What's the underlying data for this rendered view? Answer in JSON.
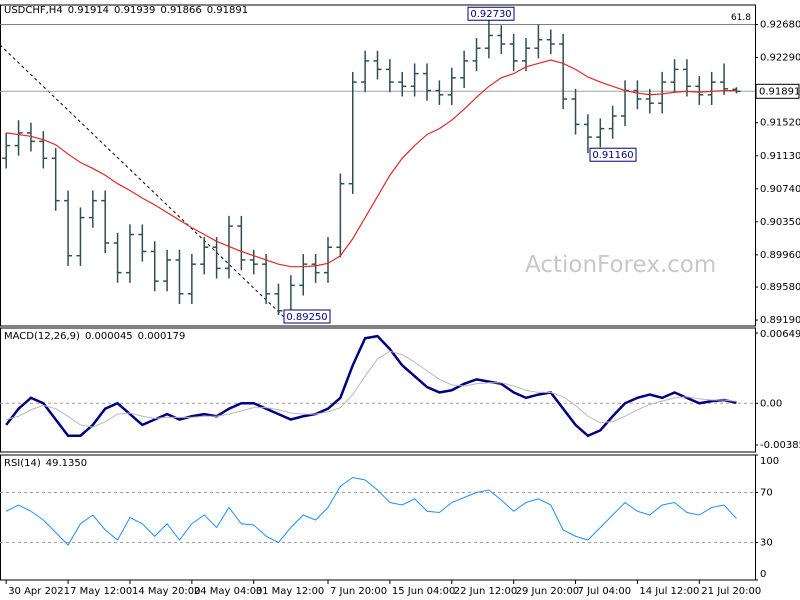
{
  "chart_data": [
    {
      "type": "ohlc",
      "title": "USDCHF,H4",
      "color": "#2f4f4f",
      "open": [
        0.911,
        0.9125,
        0.914,
        0.913,
        0.911,
        0.906,
        0.8995,
        0.904,
        0.906,
        0.901,
        0.8975,
        0.902,
        0.9,
        0.8965,
        0.899,
        0.895,
        0.8985,
        0.9005,
        0.898,
        0.903,
        0.899,
        0.8985,
        0.895,
        0.893,
        0.896,
        0.8985,
        0.8975,
        0.9005,
        0.908,
        0.92,
        0.9225,
        0.9215,
        0.92,
        0.9195,
        0.921,
        0.919,
        0.9185,
        0.9205,
        0.9225,
        0.924,
        0.9255,
        0.9245,
        0.9225,
        0.924,
        0.925,
        0.9245,
        0.918,
        0.915,
        0.9135,
        0.9145,
        0.916,
        0.919,
        0.918,
        0.9175,
        0.92,
        0.9215,
        0.9195,
        0.9185,
        0.92,
        0.91914
      ],
      "high": [
        0.914,
        0.9155,
        0.9152,
        0.9142,
        0.9122,
        0.9072,
        0.9052,
        0.9072,
        0.9072,
        0.9022,
        0.9032,
        0.9032,
        0.9012,
        0.9002,
        0.9002,
        0.8997,
        0.9017,
        0.9017,
        0.9042,
        0.9042,
        0.9002,
        0.8997,
        0.8962,
        0.8972,
        0.8997,
        0.8997,
        0.9017,
        0.9092,
        0.9212,
        0.9237,
        0.9237,
        0.9227,
        0.9212,
        0.9222,
        0.9222,
        0.9202,
        0.9217,
        0.9237,
        0.9252,
        0.9273,
        0.9267,
        0.9257,
        0.9252,
        0.9268,
        0.9262,
        0.9257,
        0.9192,
        0.9162,
        0.9157,
        0.9172,
        0.9202,
        0.9202,
        0.9192,
        0.9212,
        0.9227,
        0.9227,
        0.9207,
        0.9212,
        0.9222,
        0.91939
      ],
      "low": [
        0.9098,
        0.9113,
        0.9118,
        0.9098,
        0.9048,
        0.8983,
        0.8983,
        0.9028,
        0.8998,
        0.8963,
        0.8963,
        0.8988,
        0.8953,
        0.8953,
        0.8938,
        0.8938,
        0.8973,
        0.8968,
        0.8968,
        0.8978,
        0.8973,
        0.8938,
        0.8925,
        0.8926,
        0.8948,
        0.8963,
        0.8963,
        0.8993,
        0.9068,
        0.9188,
        0.9203,
        0.9188,
        0.9183,
        0.9183,
        0.9178,
        0.9173,
        0.9173,
        0.9193,
        0.9213,
        0.9228,
        0.9233,
        0.9213,
        0.9213,
        0.9228,
        0.9233,
        0.9168,
        0.9138,
        0.9116,
        0.9123,
        0.9133,
        0.9148,
        0.9168,
        0.9163,
        0.9163,
        0.9188,
        0.9183,
        0.9173,
        0.9173,
        0.9185,
        0.91866
      ],
      "close": [
        0.9125,
        0.914,
        0.913,
        0.911,
        0.906,
        0.8995,
        0.904,
        0.906,
        0.901,
        0.8975,
        0.902,
        0.9,
        0.8965,
        0.899,
        0.895,
        0.8985,
        0.9005,
        0.898,
        0.903,
        0.899,
        0.8985,
        0.895,
        0.893,
        0.896,
        0.8985,
        0.8975,
        0.9005,
        0.908,
        0.92,
        0.9225,
        0.9215,
        0.92,
        0.9195,
        0.921,
        0.919,
        0.9185,
        0.9205,
        0.9225,
        0.924,
        0.9255,
        0.9245,
        0.9225,
        0.924,
        0.925,
        0.9245,
        0.918,
        0.915,
        0.9135,
        0.9145,
        0.916,
        0.919,
        0.918,
        0.9175,
        0.92,
        0.9215,
        0.9195,
        0.9185,
        0.92,
        0.9192,
        0.91891
      ],
      "ma": {
        "color": "#e02828",
        "values": [
          0.914,
          0.9138,
          0.9136,
          0.9132,
          0.9126,
          0.9115,
          0.9105,
          0.9098,
          0.909,
          0.908,
          0.9072,
          0.9063,
          0.9055,
          0.9046,
          0.9037,
          0.9028,
          0.902,
          0.9012,
          0.9006,
          0.9,
          0.8995,
          0.899,
          0.8985,
          0.8982,
          0.8982,
          0.8983,
          0.8986,
          0.8995,
          0.9015,
          0.904,
          0.9065,
          0.909,
          0.911,
          0.9125,
          0.9138,
          0.9145,
          0.9155,
          0.9168,
          0.9182,
          0.9195,
          0.9205,
          0.921,
          0.9218,
          0.9222,
          0.9226,
          0.9222,
          0.9215,
          0.9206,
          0.92,
          0.9195,
          0.919,
          0.9187,
          0.9185,
          0.9186,
          0.9188,
          0.9189,
          0.9188,
          0.9189,
          0.919,
          0.919
        ]
      },
      "xlim": [
        -0.5,
        60.5
      ],
      "xticks": [
        {
          "value": 0,
          "label": "30 Apr 2021"
        },
        {
          "value": 5,
          "label": "7 May 12:00"
        },
        {
          "value": 10,
          "label": "14 May 20:00"
        },
        {
          "value": 15,
          "label": "24 May 04:00"
        },
        {
          "value": 20,
          "label": "31 May 12:00"
        },
        {
          "value": 26,
          "label": "7 Jun 20:00"
        },
        {
          "value": 31,
          "label": "15 Jun 04:00"
        },
        {
          "value": 36,
          "label": "22 Jun 12:00"
        },
        {
          "value": 41,
          "label": "29 Jun 20:00"
        },
        {
          "value": 46,
          "label": "7 Jul 04:00"
        },
        {
          "value": 51,
          "label": "14 Jul 12:00"
        },
        {
          "value": 56,
          "label": "21 Jul 20:00"
        }
      ],
      "ylim": [
        0.8912,
        0.9291
      ],
      "yticks": [
        {
          "value": 0.9268,
          "label": "0.92680"
        },
        {
          "value": 0.9229,
          "label": "0.92290"
        },
        {
          "value": 0.9152,
          "label": "0.91520"
        },
        {
          "value": 0.9113,
          "label": "0.91130"
        },
        {
          "value": 0.9074,
          "label": "0.90740"
        },
        {
          "value": 0.9035,
          "label": "0.90350"
        },
        {
          "value": 0.8996,
          "label": "0.89960"
        },
        {
          "value": 0.8958,
          "label": "0.89580"
        },
        {
          "value": 0.8919,
          "label": "0.89190"
        }
      ],
      "annotations": [
        {
          "value": 0.9273,
          "label": "0.92730"
        },
        {
          "value": 0.9116,
          "label": "0.91160"
        },
        {
          "value": 0.8925,
          "label": "0.89250"
        }
      ],
      "fib": {
        "value": 0.9268,
        "label": "61.8"
      },
      "watermark": "ActionForex.com"
    },
    {
      "type": "line",
      "title": "MACD(12,26,9)",
      "series": [
        {
          "color": "#000080",
          "values": [
            -0.002,
            -0.0005,
            0.0005,
            0,
            -0.0015,
            -0.003,
            -0.003,
            -0.002,
            -0.0005,
            0,
            -0.001,
            -0.002,
            -0.0015,
            -0.001,
            -0.0015,
            -0.0012,
            -0.001,
            -0.0012,
            -0.0005,
            0,
            0,
            -0.0005,
            -0.001,
            -0.0015,
            -0.0012,
            -0.001,
            -0.0005,
            0.0005,
            0.0035,
            0.006,
            0.0062,
            0.005,
            0.0035,
            0.0025,
            0.0015,
            0.001,
            0.0012,
            0.0018,
            0.0022,
            0.002,
            0.0018,
            0.001,
            0.0005,
            0.0008,
            0.001,
            -0.0005,
            -0.002,
            -0.003,
            -0.0025,
            -0.0012,
            0,
            0.0005,
            0.0008,
            0.0005,
            0.001,
            0.0005,
            0,
            0.0002,
            0.0003,
            4.5e-05
          ]
        },
        {
          "color": "#b8b8b8",
          "values": [
            -0.0015,
            -0.0012,
            -0.0006,
            -0.0002,
            -0.0005,
            -0.0012,
            -0.002,
            -0.0022,
            -0.0017,
            -0.001,
            -0.0009,
            -0.0012,
            -0.0014,
            -0.0013,
            -0.0013,
            -0.0013,
            -0.0012,
            -0.0012,
            -0.001,
            -0.0007,
            -0.0004,
            -0.0004,
            -0.0006,
            -0.0009,
            -0.001,
            -0.001,
            -0.0008,
            -0.0004,
            0.0008,
            0.0025,
            0.0041,
            0.0048,
            0.0045,
            0.0038,
            0.003,
            0.0022,
            0.0017,
            0.0016,
            0.0018,
            0.0019,
            0.0019,
            0.0016,
            0.0012,
            0.001,
            0.001,
            0.0006,
            -0.0002,
            -0.0012,
            -0.0018,
            -0.0017,
            -0.0012,
            -0.0006,
            -0.0001,
            0.0002,
            0.0005,
            0.0006,
            0.0004,
            0.0003,
            0.0003,
            0.000179
          ]
        }
      ],
      "ylim": [
        -0.0045,
        0.00695
      ],
      "yticks": [
        0.00649,
        {
          "value": 0,
          "label": "0.00"
        },
        -0.003855
      ],
      "grid": "dashed"
    },
    {
      "type": "line",
      "title": "RSI(14)",
      "last_label": "49.1350",
      "series": [
        {
          "color": "#1e90ff",
          "values": [
            55,
            60,
            55,
            48,
            38,
            28,
            45,
            52,
            40,
            32,
            50,
            45,
            35,
            45,
            32,
            45,
            52,
            42,
            58,
            45,
            44,
            35,
            30,
            42,
            52,
            48,
            58,
            75,
            82,
            80,
            72,
            62,
            60,
            65,
            55,
            54,
            62,
            66,
            70,
            72,
            64,
            55,
            62,
            65,
            60,
            40,
            35,
            32,
            42,
            52,
            62,
            55,
            52,
            60,
            62,
            54,
            52,
            58,
            60,
            49.135
          ]
        }
      ],
      "ylim": [
        0,
        100
      ],
      "yticks": [
        100,
        70,
        30,
        0
      ],
      "grid": "dashed"
    }
  ]
}
